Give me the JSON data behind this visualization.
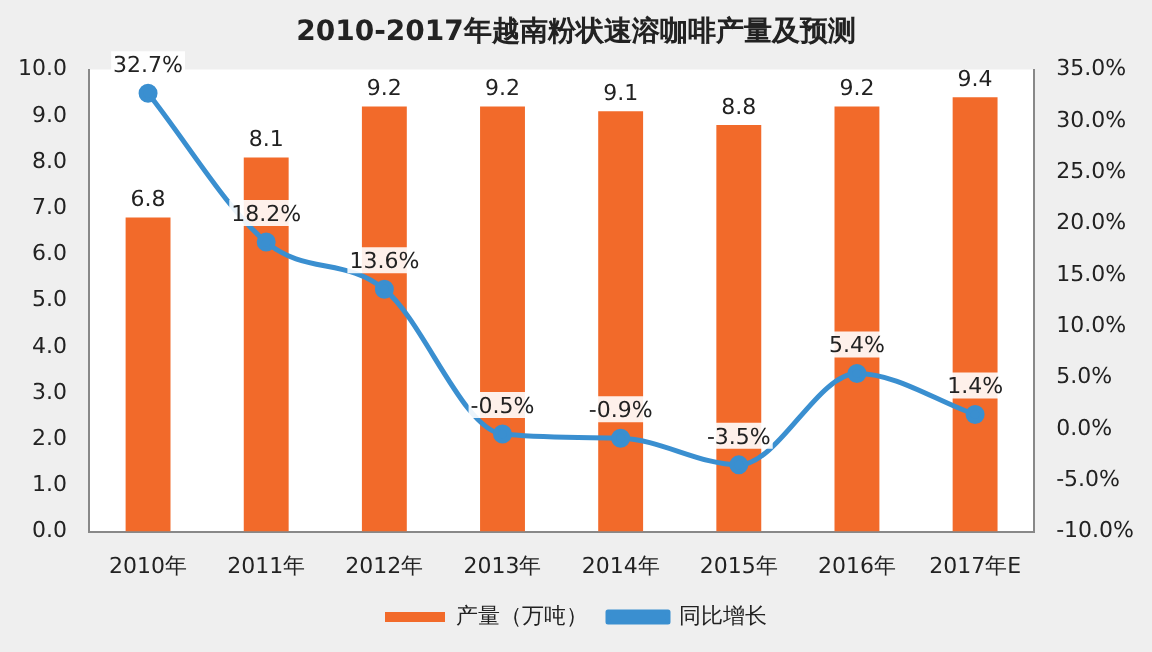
{
  "chart_data": {
    "type": "bar",
    "title": "2010-2017年越南粉状速溶咖啡产量及预测",
    "categories": [
      "2010年",
      "2011年",
      "2012年",
      "2013年",
      "2014年",
      "2015年",
      "2016年",
      "2017年E"
    ],
    "series": [
      {
        "name": "产量（万吨）",
        "color": "#f26a2a",
        "values": [
          6.8,
          8.1,
          9.2,
          9.2,
          9.1,
          8.8,
          9.2,
          9.4
        ],
        "value_labels": [
          "6.8",
          "8.1",
          "9.2",
          "9.2",
          "9.1",
          "8.8",
          "9.2",
          "9.4"
        ]
      },
      {
        "name": "同比增长",
        "type": "line",
        "axis": "y2",
        "color": "#3a8fd0",
        "values": [
          32.7,
          18.2,
          13.6,
          -0.5,
          -0.9,
          -3.5,
          5.4,
          1.4
        ],
        "value_labels": [
          "32.7%",
          "18.2%",
          "13.6%",
          "-0.5%",
          "-0.9%",
          "-3.5%",
          "5.4%",
          "1.4%"
        ]
      }
    ],
    "ylim": [
      0,
      10
    ],
    "yticks": [
      {
        "value": 0,
        "label": "0.0"
      },
      {
        "value": 1,
        "label": "1.0"
      },
      {
        "value": 2,
        "label": "2.0"
      },
      {
        "value": 3,
        "label": "3.0"
      },
      {
        "value": 4,
        "label": "4.0"
      },
      {
        "value": 5,
        "label": "5.0"
      },
      {
        "value": 6,
        "label": "6.0"
      },
      {
        "value": 7,
        "label": "7.0"
      },
      {
        "value": 8,
        "label": "8.0"
      },
      {
        "value": 9,
        "label": "9.0"
      },
      {
        "value": 10,
        "label": "10.0"
      }
    ],
    "y2lim": [
      -10,
      35
    ],
    "y2ticks": [
      {
        "value": -10,
        "label": "-10.0%"
      },
      {
        "value": -5,
        "label": "-5.0%"
      },
      {
        "value": 0,
        "label": "0.0%"
      },
      {
        "value": 5,
        "label": "5.0%"
      },
      {
        "value": 10,
        "label": "10.0%"
      },
      {
        "value": 15,
        "label": "15.0%"
      },
      {
        "value": 20,
        "label": "20.0%"
      },
      {
        "value": 25,
        "label": "25.0%"
      },
      {
        "value": 30,
        "label": "30.0%"
      },
      {
        "value": 35,
        "label": "35.0%"
      }
    ],
    "legend": "bottom",
    "grid": false,
    "marker": "circle"
  }
}
